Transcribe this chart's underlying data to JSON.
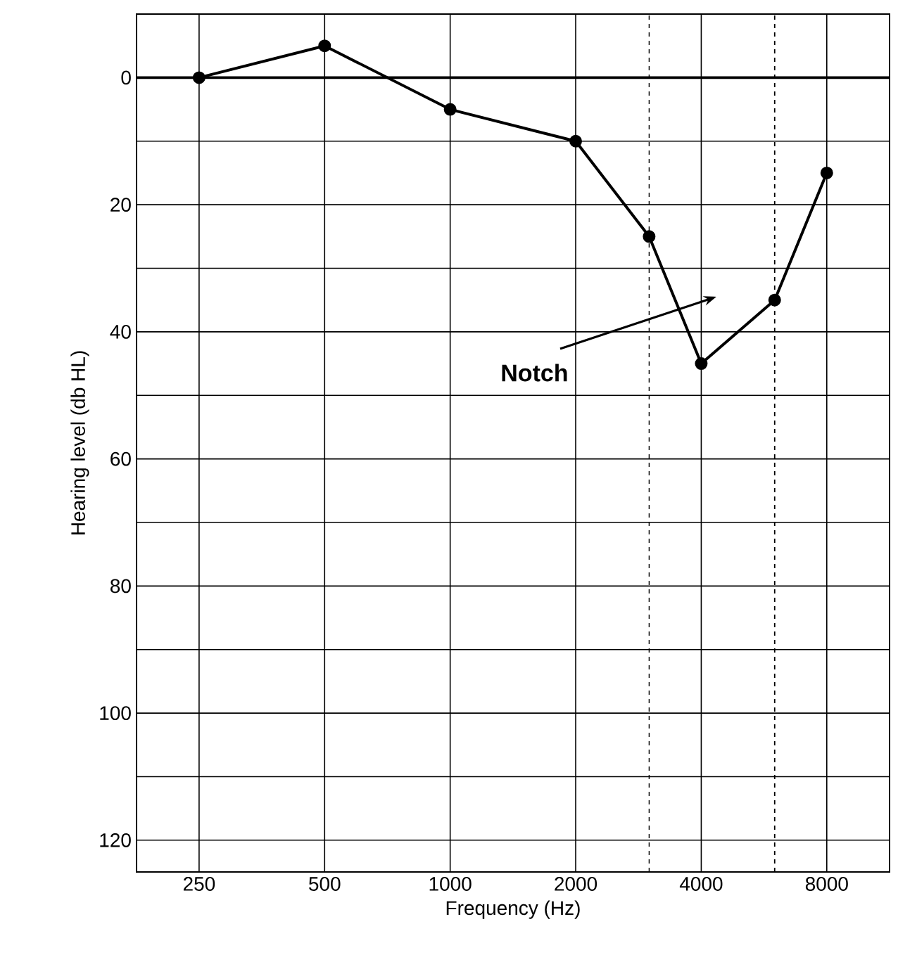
{
  "chart_data": {
    "type": "line",
    "xlabel": "Frequency (Hz)",
    "ylabel": "Hearing level (db HL)",
    "x": [
      250,
      500,
      1000,
      2000,
      3000,
      4000,
      6000,
      8000
    ],
    "series": [
      {
        "color": "#000000",
        "values": [
          0,
          -5,
          5,
          10,
          25,
          45,
          35,
          15
        ]
      }
    ],
    "log": "x",
    "xlim": [
      177,
      11314
    ],
    "ylim": [
      125,
      -10
    ],
    "xticks": [
      250,
      500,
      1000,
      2000,
      4000,
      8000
    ],
    "yticks": [
      0,
      {
        "value": 10,
        "label": null
      },
      20,
      {
        "value": 30,
        "label": null
      },
      40,
      {
        "value": 50,
        "label": null
      },
      60,
      {
        "value": 70,
        "label": null
      },
      80,
      {
        "value": 90,
        "label": null
      },
      100,
      {
        "value": 110,
        "label": null
      },
      120
    ],
    "grid": true,
    "marker": "circle",
    "line_style": "solid",
    "ref_lines": [
      {
        "axis": "y",
        "value": 0,
        "line_style": "solid"
      },
      {
        "axis": "x",
        "value": 3000,
        "line_style": "dashed"
      },
      {
        "axis": "x",
        "value": 6000,
        "line_style": "dashed"
      }
    ],
    "annotations": [
      "Notch"
    ]
  }
}
